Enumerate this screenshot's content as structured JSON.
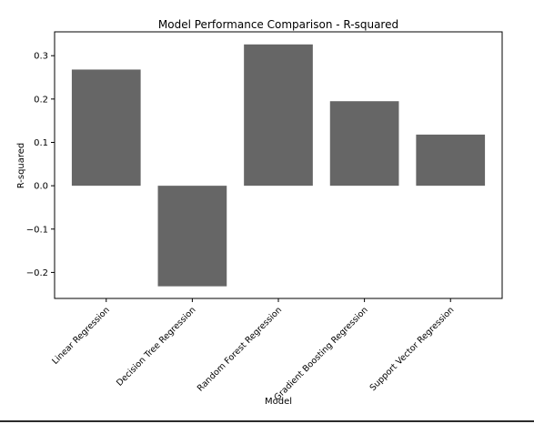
{
  "chart_data": {
    "type": "bar",
    "title": "Model Performance Comparison - R-squared",
    "xlabel": "Model",
    "ylabel": "R-squared",
    "categories": [
      "Linear Regression",
      "Decision Tree Regression",
      "Random Forest Regression",
      "Gradient Boosting Regression",
      "Support Vector Regression"
    ],
    "values": [
      0.268,
      -0.232,
      0.326,
      0.195,
      0.118
    ],
    "ylim": [
      -0.26,
      0.355
    ],
    "yticks": [
      -0.2,
      -0.1,
      0.0,
      0.1,
      0.2,
      0.3
    ],
    "ytick_labels": [
      "−0.2",
      "−0.1",
      "0.0",
      "0.1",
      "0.2",
      "0.3"
    ],
    "bar_color": "#666666",
    "grid": false,
    "legend": "none"
  }
}
